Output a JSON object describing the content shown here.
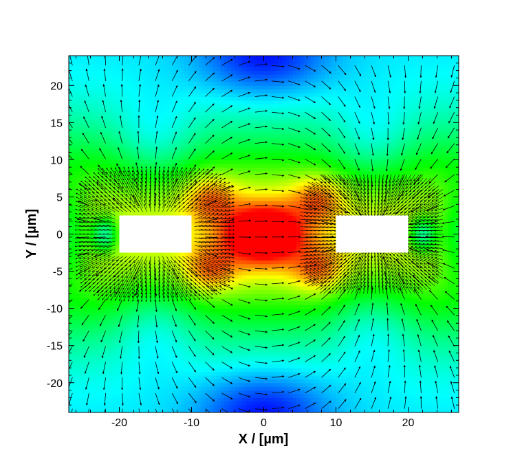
{
  "chart_data": {
    "type": "heatmap",
    "title": "",
    "xlabel": "X / [µm]",
    "ylabel": "Y / [µm]",
    "xlim": [
      -27,
      27
    ],
    "ylim": [
      -24,
      24
    ],
    "xticks": [
      -20,
      -10,
      0,
      10,
      20
    ],
    "xtick_labels": [
      "-20",
      "-10",
      "0",
      "10",
      "20"
    ],
    "yticks": [
      -20,
      -15,
      -10,
      -5,
      0,
      5,
      10,
      15,
      20
    ],
    "ytick_labels": [
      "-20",
      "-15",
      "-10",
      "-5",
      "0",
      "5",
      "10",
      "15",
      "20"
    ],
    "colormap": [
      "#0000ff",
      "#00ffff",
      "#00ff00",
      "#ffff00",
      "#ff0000"
    ],
    "field_description_values": {
      "electrodes": [
        {
          "x_min": -20,
          "x_max": -10,
          "y_min": -2.5,
          "y_max": 2.5
        },
        {
          "x_min": 10,
          "x_max": 20,
          "y_min": -2.5,
          "y_max": 2.5
        }
      ]
    },
    "vector_field": true,
    "grid": false,
    "legend": "none"
  }
}
